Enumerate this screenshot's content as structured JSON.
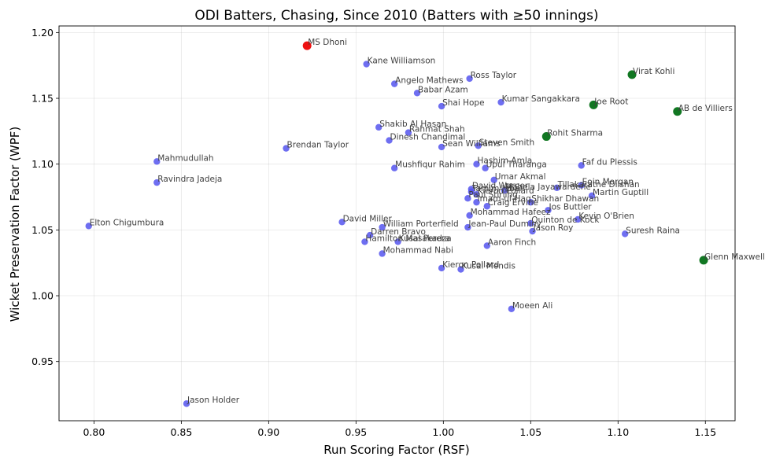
{
  "chart_data": {
    "type": "scatter",
    "title": "ODI Batters, Chasing, Since 2010 (Batters with ≥50 innings)",
    "xlabel": "Run Scoring Factor (RSF)",
    "ylabel": "Wicket Preservation Factor (WPF)",
    "xlim": [
      0.78,
      1.167
    ],
    "ylim": [
      0.905,
      1.205
    ],
    "xticks": [
      "0.80",
      "0.85",
      "0.90",
      "0.95",
      "1.00",
      "1.05",
      "1.10",
      "1.15"
    ],
    "yticks": [
      "0.95",
      "1.00",
      "1.05",
      "1.10",
      "1.15",
      "1.20"
    ],
    "grid": true,
    "colors": {
      "highlight": "#ee1111",
      "top": "#117722",
      "other": "#5555ee"
    },
    "points": [
      {
        "name": "MS Dhoni",
        "x": 0.922,
        "y": 1.19,
        "group": "highlight"
      },
      {
        "name": "Virat Kohli",
        "x": 1.108,
        "y": 1.168,
        "group": "top"
      },
      {
        "name": "Joe Root",
        "x": 1.086,
        "y": 1.145,
        "group": "top"
      },
      {
        "name": "AB de Villiers",
        "x": 1.134,
        "y": 1.14,
        "group": "top"
      },
      {
        "name": "Rohit Sharma",
        "x": 1.059,
        "y": 1.121,
        "group": "top"
      },
      {
        "name": "Glenn Maxwell",
        "x": 1.149,
        "y": 1.027,
        "group": "top"
      },
      {
        "name": "Kane Williamson",
        "x": 0.956,
        "y": 1.176,
        "group": "other"
      },
      {
        "name": "Ross Taylor",
        "x": 1.015,
        "y": 1.165,
        "group": "other"
      },
      {
        "name": "Angelo Mathews",
        "x": 0.972,
        "y": 1.161,
        "group": "other"
      },
      {
        "name": "Babar Azam",
        "x": 0.985,
        "y": 1.154,
        "group": "other"
      },
      {
        "name": "Kumar Sangakkara",
        "x": 1.033,
        "y": 1.147,
        "group": "other"
      },
      {
        "name": "Shai Hope",
        "x": 0.999,
        "y": 1.144,
        "group": "other"
      },
      {
        "name": "Shakib Al Hasan",
        "x": 0.963,
        "y": 1.128,
        "group": "other"
      },
      {
        "name": "Rahmat Shah",
        "x": 0.98,
        "y": 1.124,
        "group": "other"
      },
      {
        "name": "Dinesh Chandimal",
        "x": 0.969,
        "y": 1.118,
        "group": "other"
      },
      {
        "name": "Steven Smith",
        "x": 1.02,
        "y": 1.114,
        "group": "other"
      },
      {
        "name": "Sean Williams",
        "x": 0.999,
        "y": 1.113,
        "group": "other"
      },
      {
        "name": "Brendan Taylor",
        "x": 0.91,
        "y": 1.112,
        "group": "other"
      },
      {
        "name": "Mahmudullah",
        "x": 0.836,
        "y": 1.102,
        "group": "other"
      },
      {
        "name": "Hashim Amla",
        "x": 1.019,
        "y": 1.1,
        "group": "other"
      },
      {
        "name": "Faf du Plessis",
        "x": 1.079,
        "y": 1.099,
        "group": "other"
      },
      {
        "name": "Mushfiqur Rahim",
        "x": 0.972,
        "y": 1.097,
        "group": "other"
      },
      {
        "name": "Upul Tharanga",
        "x": 1.024,
        "y": 1.097,
        "group": "other"
      },
      {
        "name": "Ravindra Jadeja",
        "x": 0.836,
        "y": 1.086,
        "group": "other"
      },
      {
        "name": "Umar Akmal",
        "x": 1.029,
        "y": 1.088,
        "group": "other"
      },
      {
        "name": "Eoin Morgan",
        "x": 1.079,
        "y": 1.084,
        "group": "other"
      },
      {
        "name": "Tillakaratne Dilshan",
        "x": 1.065,
        "y": 1.082,
        "group": "other"
      },
      {
        "name": "David Warner",
        "x": 1.016,
        "y": 1.081,
        "group": "other"
      },
      {
        "name": "Mahela Jayawardene",
        "x": 1.035,
        "y": 1.08,
        "group": "other"
      },
      {
        "name": "Tamim Iqbal",
        "x": 1.016,
        "y": 1.079,
        "group": "other"
      },
      {
        "name": "Kieron Pollard",
        "x": 1.019,
        "y": 1.077,
        "group": "other"
      },
      {
        "name": "Martin Guptill",
        "x": 1.085,
        "y": 1.076,
        "group": "other"
      },
      {
        "name": "Paul Stirling",
        "x": 1.014,
        "y": 1.074,
        "group": "other"
      },
      {
        "name": "Shikhar Dhawan",
        "x": 1.05,
        "y": 1.071,
        "group": "other"
      },
      {
        "name": "Imam-ul-Haq",
        "x": 1.019,
        "y": 1.071,
        "group": "other"
      },
      {
        "name": "Craig Ervine",
        "x": 1.025,
        "y": 1.068,
        "group": "other"
      },
      {
        "name": "Jos Buttler",
        "x": 1.06,
        "y": 1.065,
        "group": "other"
      },
      {
        "name": "Mohammad Hafeez",
        "x": 1.015,
        "y": 1.061,
        "group": "other"
      },
      {
        "name": "Kevin O'Brien",
        "x": 1.077,
        "y": 1.058,
        "group": "other"
      },
      {
        "name": "Quinton de Kock",
        "x": 1.05,
        "y": 1.055,
        "group": "other"
      },
      {
        "name": "David Miller",
        "x": 0.942,
        "y": 1.056,
        "group": "other"
      },
      {
        "name": "Elton Chigumbura",
        "x": 0.797,
        "y": 1.053,
        "group": "other"
      },
      {
        "name": "William Porterfield",
        "x": 0.965,
        "y": 1.052,
        "group": "other"
      },
      {
        "name": "Jean-Paul Duminy",
        "x": 1.014,
        "y": 1.052,
        "group": "other"
      },
      {
        "name": "Jason Roy",
        "x": 1.051,
        "y": 1.049,
        "group": "other"
      },
      {
        "name": "Suresh Raina",
        "x": 1.104,
        "y": 1.047,
        "group": "other"
      },
      {
        "name": "Darren Bravo",
        "x": 0.958,
        "y": 1.046,
        "group": "other"
      },
      {
        "name": "Hamilton Masakadza",
        "x": 0.955,
        "y": 1.041,
        "group": "other"
      },
      {
        "name": "Kusal Perera",
        "x": 0.974,
        "y": 1.041,
        "group": "other"
      },
      {
        "name": "Aaron Finch",
        "x": 1.025,
        "y": 1.038,
        "group": "other"
      },
      {
        "name": "Mohammad Nabi",
        "x": 0.965,
        "y": 1.032,
        "group": "other"
      },
      {
        "name": "Kieron Pollard",
        "x": 0.999,
        "y": 1.021,
        "group": "other"
      },
      {
        "name": "Kusal Mendis",
        "x": 1.01,
        "y": 1.02,
        "group": "other"
      },
      {
        "name": "Moeen Ali",
        "x": 1.039,
        "y": 0.99,
        "group": "other"
      },
      {
        "name": "Jason Holder",
        "x": 0.853,
        "y": 0.918,
        "group": "other"
      }
    ]
  }
}
